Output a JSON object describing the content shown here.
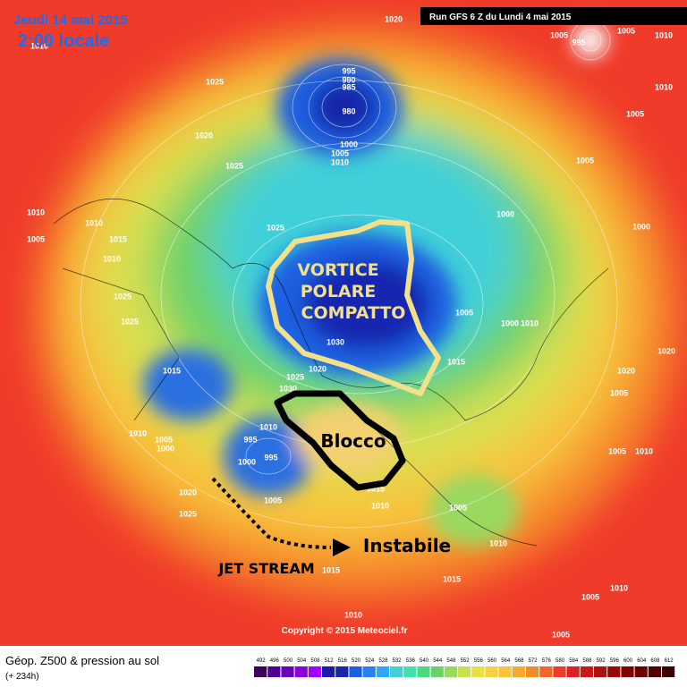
{
  "header": {
    "date": "Jeudi 14 mai 2015",
    "time": "2:00 locale",
    "run": "Run GFS 6 Z du Lundi 4 mai 2015"
  },
  "annotations": {
    "vortex": "VORTICE\nPOLARE\nCOMPATTO",
    "block": "Blocco",
    "unstable": "Instabile",
    "jet": "JET STREAM"
  },
  "isobars": [
    1020,
    1010,
    1025,
    995,
    990,
    985,
    980,
    1020,
    1025,
    1000,
    1005,
    1010,
    1005,
    1000,
    1000,
    1010,
    1005,
    1010,
    1015,
    1010,
    1025,
    1025,
    1025,
    1005,
    1000,
    1010,
    1030,
    1015,
    1020,
    1020,
    1015,
    1025,
    1020,
    1030,
    1010,
    1005,
    1000,
    1010,
    995,
    1000,
    995,
    1005,
    1020,
    1025,
    1015,
    1010,
    1005,
    1010,
    1015,
    1015,
    1010,
    1005,
    1010,
    1005,
    1005,
    1005,
    1010,
    1005,
    1005,
    995,
    1010,
    1010,
    1005
  ],
  "copyright": "Copyright © 2015 Meteociel.fr",
  "footer": {
    "title": "Géop. Z500 & pression au sol",
    "subtitle": "(+ 234h)"
  },
  "colorbar": [
    492,
    496,
    500,
    504,
    508,
    512,
    516,
    520,
    524,
    528,
    532,
    536,
    540,
    544,
    548,
    552,
    556,
    560,
    564,
    568,
    572,
    576,
    580,
    584,
    588,
    592,
    596,
    600,
    604,
    608,
    612
  ]
}
